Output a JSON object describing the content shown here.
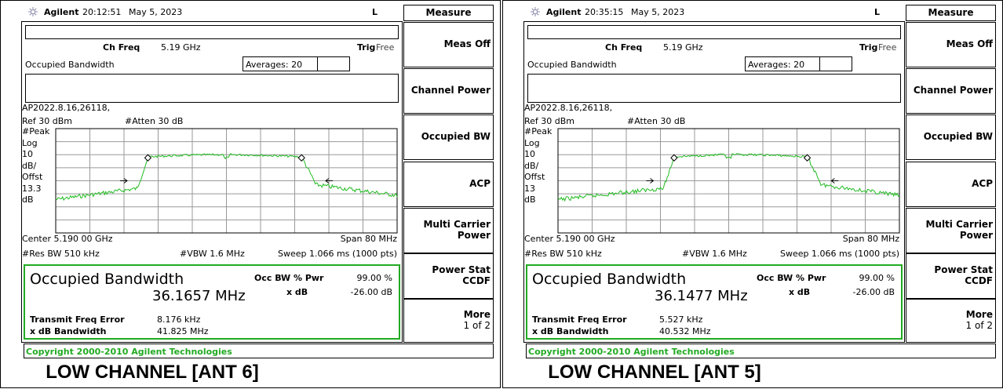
{
  "panels": [
    {
      "header": {
        "brand": "Agilent",
        "time": "20:12:51",
        "date": "May 5, 2023",
        "flag": "L"
      },
      "softkeys": {
        "title": "Measure",
        "keys": [
          [
            "Meas Off"
          ],
          [
            "Channel Power"
          ],
          [
            "Occupied BW"
          ],
          [
            "ACP"
          ],
          [
            "Multi Carrier",
            "Power"
          ],
          [
            "Power Stat",
            "CCDF"
          ],
          [
            "More",
            "1 of 2"
          ]
        ]
      },
      "ch_freq_label": "Ch Freq",
      "ch_freq": "5.19 GHz",
      "trig_label": "Trig",
      "trig": "Free",
      "measurement": "Occupied Bandwidth",
      "averages": "Averages: 20",
      "file": "AP2022.8.16,26118,",
      "ref": "Ref 30 dBm",
      "atten": "#Atten 30 dB",
      "scale": [
        "#Peak",
        "Log",
        "10",
        "dB/",
        "Offst",
        "13.3",
        "dB"
      ],
      "center": "Center 5.190 00 GHz",
      "span": "Span 80 MHz",
      "res_bw": "#Res BW 510 kHz",
      "vbw": "#VBW 1.6 MHz",
      "sweep": "Sweep 1.066 ms (1000 pts)",
      "results": {
        "title": "Occupied Bandwidth",
        "value": "36.1657 MHz",
        "occ_label": "Occ BW % Pwr",
        "occ_value": "99.00 %",
        "xdb_label": "x dB",
        "xdb_value": "-26.00 dB",
        "tfe_label": "Transmit Freq Error",
        "tfe_value": "8.176 kHz",
        "xbw_label": "x dB Bandwidth",
        "xbw_value": "41.825 MHz"
      },
      "copyright": "Copyright 2000-2010 Agilent Technologies",
      "caption": "LOW CHANNEL [ANT 6]"
    },
    {
      "header": {
        "brand": "Agilent",
        "time": "20:35:15",
        "date": "May 5, 2023",
        "flag": "L"
      },
      "softkeys": {
        "title": "Measure",
        "keys": [
          [
            "Meas Off"
          ],
          [
            "Channel Power"
          ],
          [
            "Occupied BW"
          ],
          [
            "ACP"
          ],
          [
            "Multi Carrier",
            "Power"
          ],
          [
            "Power Stat",
            "CCDF"
          ],
          [
            "More",
            "1 of 2"
          ]
        ]
      },
      "ch_freq_label": "Ch Freq",
      "ch_freq": "5.19 GHz",
      "trig_label": "Trig",
      "trig": "Free",
      "measurement": "Occupied Bandwidth",
      "averages": "Averages: 20",
      "file": "AP2022.8.16,26118,",
      "ref": "Ref 30 dBm",
      "atten": "#Atten 30 dB",
      "scale": [
        "#Peak",
        "Log",
        "10",
        "dB/",
        "Offst",
        "13",
        "dB"
      ],
      "center": "Center 5.190 00 GHz",
      "span": "Span 80 MHz",
      "res_bw": "#Res BW 510 kHz",
      "vbw": "#VBW 1.6 MHz",
      "sweep": "Sweep 1.066 ms (1000 pts)",
      "results": {
        "title": "Occupied Bandwidth",
        "value": "36.1477 MHz",
        "occ_label": "Occ BW % Pwr",
        "occ_value": "99.00 %",
        "xdb_label": "x dB",
        "xdb_value": "-26.00 dB",
        "tfe_label": "Transmit Freq Error",
        "tfe_value": "5.527 kHz",
        "xbw_label": "x dB Bandwidth",
        "xbw_value": "40.532 MHz"
      },
      "copyright": "Copyright 2000-2010 Agilent Technologies",
      "caption": "LOW CHANNEL [ANT 5]"
    }
  ]
}
